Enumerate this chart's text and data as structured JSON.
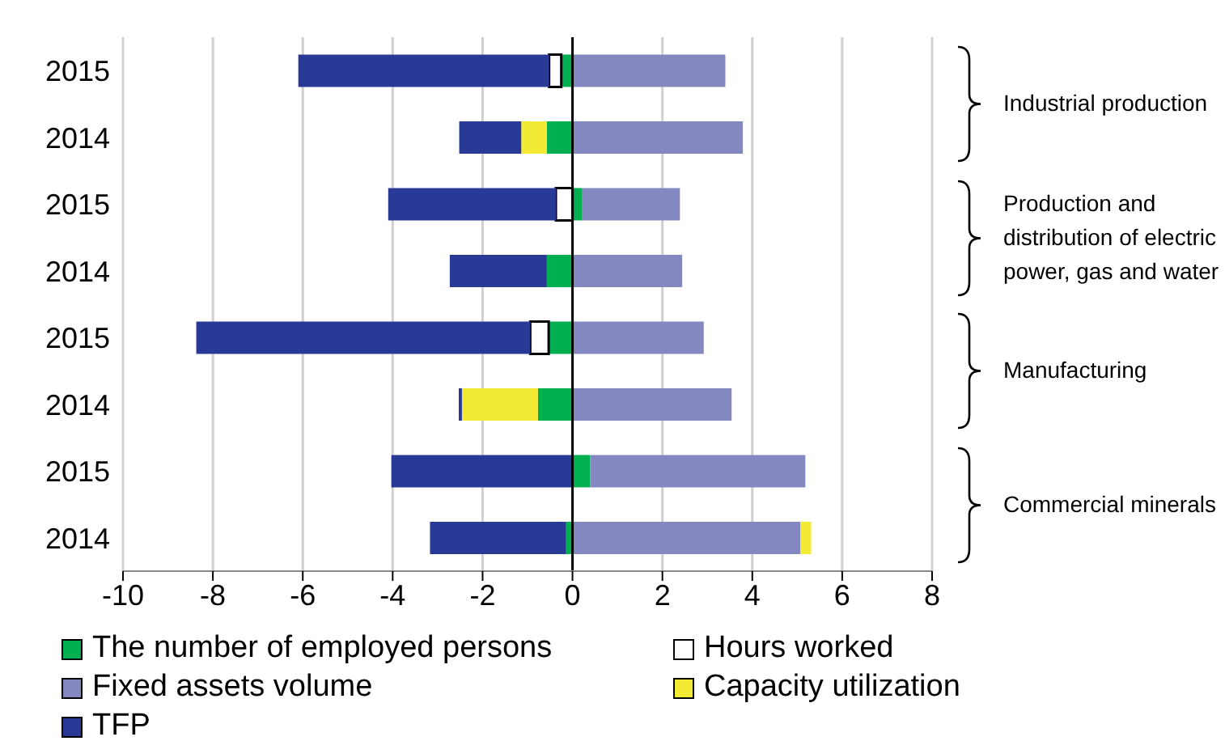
{
  "chart_data": {
    "type": "bar",
    "orientation": "horizontal",
    "stacked": true,
    "categories": [
      "2015",
      "2014",
      "2015",
      "2014",
      "2015",
      "2014",
      "2015",
      "2014"
    ],
    "series": [
      {
        "name": "The number of employed persons",
        "color": "#00b050",
        "values": [
          -0.25,
          -0.57,
          0.22,
          -0.57,
          -0.53,
          -0.77,
          0.39,
          -0.14
        ]
      },
      {
        "name": "Hours worked",
        "color": "#ffffff",
        "values": [
          -0.27,
          null,
          -0.37,
          null,
          -0.41,
          null,
          null,
          null
        ]
      },
      {
        "name": "Fixed assets volume",
        "color": "#8488c0",
        "values": [
          3.4,
          3.79,
          2.17,
          2.44,
          2.92,
          3.54,
          4.79,
          5.07
        ]
      },
      {
        "name": "Capacity utilization",
        "color": "#f2ea35",
        "values": [
          null,
          -0.57,
          null,
          null,
          null,
          -1.69,
          null,
          0.24
        ]
      },
      {
        "name": "TFP",
        "color": "#283a96",
        "values": [
          -5.58,
          -1.38,
          -3.73,
          -2.16,
          -7.43,
          -0.07,
          -4.03,
          -3.03
        ]
      }
    ],
    "xlim": [
      -10,
      8
    ],
    "xticks": [
      -10,
      -8,
      -6,
      -4,
      -2,
      0,
      2,
      4,
      6,
      8
    ],
    "ref_lines": [
      {
        "axis": "x",
        "value": 0,
        "color": "#000000"
      }
    ],
    "grid": "x",
    "legend": "bottom",
    "annotations": [
      "Industrial production",
      "Production and distribution of electric power, gas and water",
      "Manufacturing",
      "Commercial minerals"
    ]
  }
}
